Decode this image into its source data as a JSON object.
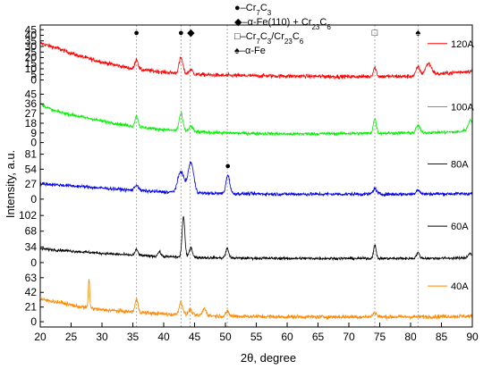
{
  "chart_data": {
    "type": "line",
    "xlabel": "2θ, degree",
    "ylabel": "Intensity, a.u.",
    "xlim": [
      20,
      90
    ],
    "x_ticks": [
      20,
      25,
      30,
      35,
      40,
      45,
      50,
      55,
      60,
      65,
      70,
      75,
      80,
      85,
      90
    ],
    "grid": false,
    "legend_position": "top-center",
    "legend": [
      {
        "marker": "●",
        "label_parts": [
          [
            "–Cr",
            "n"
          ],
          [
            "7",
            "sub"
          ],
          [
            "C",
            "n"
          ],
          [
            "3",
            "sub"
          ]
        ]
      },
      {
        "marker": "◆",
        "label_parts": [
          [
            "–α-Fe(110) + Cr",
            "n"
          ],
          [
            "23",
            "sub"
          ],
          [
            "C",
            "n"
          ],
          [
            "6",
            "sub"
          ]
        ]
      },
      {
        "marker": "□",
        "label_parts": [
          [
            "–Cr",
            "n"
          ],
          [
            "7",
            "sub"
          ],
          [
            "C",
            "n"
          ],
          [
            "3",
            "sub"
          ],
          [
            "/Cr",
            "n"
          ],
          [
            "23",
            "sub"
          ],
          [
            "C",
            "n"
          ],
          [
            "6",
            "sub"
          ]
        ]
      },
      {
        "marker": "♠",
        "label_parts": [
          [
            "–α-Fe",
            "n"
          ]
        ]
      }
    ],
    "reference_lines_x": [
      35.6,
      42.8,
      44.3,
      50.3,
      74.2,
      81.2
    ],
    "series": [
      {
        "name": "120A",
        "color": "#ff0000",
        "ticks": [
          0,
          5,
          10,
          15,
          20,
          25,
          30,
          35,
          40,
          45
        ],
        "ylim": [
          -2,
          46
        ],
        "base": [
          [
            20,
            33
          ],
          [
            23,
            28
          ],
          [
            26,
            22
          ],
          [
            30,
            16
          ],
          [
            35,
            10
          ],
          [
            40,
            7
          ],
          [
            45,
            5
          ],
          [
            50,
            4
          ],
          [
            60,
            3.5
          ],
          [
            70,
            3
          ],
          [
            80,
            3.2
          ],
          [
            90,
            8
          ]
        ],
        "noise": 2.6,
        "peaks": [
          [
            35.6,
            9,
            0.25
          ],
          [
            42.8,
            14,
            0.3
          ],
          [
            44.4,
            4,
            0.3
          ],
          [
            74.2,
            8,
            0.25
          ],
          [
            81.2,
            8,
            0.3
          ],
          [
            82.9,
            10,
            0.5
          ]
        ],
        "markers": [
          {
            "symbol": "●",
            "x": 35.6
          },
          {
            "symbol": "●",
            "x": 42.8
          },
          {
            "symbol": "◆",
            "x": 44.4
          },
          {
            "symbol": "□",
            "x": 74.2
          },
          {
            "symbol": "♠",
            "x": 81.2
          }
        ]
      },
      {
        "name": "100A",
        "color": "#00ee00",
        "ticks": [
          0,
          9,
          18,
          27,
          36,
          45
        ],
        "ylim": [
          -2,
          47
        ],
        "base": [
          [
            20,
            36
          ],
          [
            22,
            30
          ],
          [
            25,
            26
          ],
          [
            30,
            20
          ],
          [
            35,
            15
          ],
          [
            40,
            12
          ],
          [
            45,
            10
          ],
          [
            50,
            9
          ],
          [
            60,
            8
          ],
          [
            70,
            8.5
          ],
          [
            80,
            9
          ],
          [
            88,
            10
          ],
          [
            90,
            14
          ]
        ],
        "noise": 2.2,
        "peaks": [
          [
            35.6,
            10,
            0.25
          ],
          [
            42.8,
            16,
            0.3
          ],
          [
            44.4,
            5,
            0.3
          ],
          [
            74.2,
            13,
            0.25
          ],
          [
            81.2,
            7,
            0.3
          ],
          [
            89.7,
            8,
            0.3
          ]
        ],
        "markers": []
      },
      {
        "name": "80A",
        "color": "#0000ee",
        "ticks": [
          0,
          27,
          54,
          81
        ],
        "ylim": [
          -5,
          90
        ],
        "base": [
          [
            20,
            28
          ],
          [
            25,
            24
          ],
          [
            30,
            20
          ],
          [
            35,
            16
          ],
          [
            40,
            13
          ],
          [
            45,
            11
          ],
          [
            50,
            10
          ],
          [
            60,
            9
          ],
          [
            70,
            9
          ],
          [
            80,
            9
          ],
          [
            90,
            10
          ]
        ],
        "noise": 4.5,
        "peaks": [
          [
            35.6,
            10,
            0.3
          ],
          [
            42.8,
            38,
            0.5
          ],
          [
            44.4,
            55,
            0.45
          ],
          [
            50.4,
            34,
            0.3
          ],
          [
            74.2,
            10,
            0.3
          ],
          [
            81.2,
            8,
            0.3
          ]
        ],
        "markers": [
          {
            "symbol": "●",
            "x": 50.4
          }
        ]
      },
      {
        "name": "60A",
        "color": "#000000",
        "ticks": [
          0,
          34,
          68,
          102
        ],
        "ylim": [
          -6,
          112
        ],
        "base": [
          [
            20,
            30
          ],
          [
            25,
            25
          ],
          [
            30,
            20
          ],
          [
            35,
            16
          ],
          [
            40,
            13
          ],
          [
            45,
            11
          ],
          [
            50,
            10
          ],
          [
            60,
            9
          ],
          [
            70,
            9
          ],
          [
            80,
            9
          ],
          [
            90,
            10
          ]
        ],
        "noise": 4.2,
        "peaks": [
          [
            35.6,
            12,
            0.25
          ],
          [
            39.3,
            10,
            0.25
          ],
          [
            43.2,
            88,
            0.22
          ],
          [
            44.4,
            22,
            0.25
          ],
          [
            50.3,
            20,
            0.25
          ],
          [
            74.2,
            30,
            0.2
          ],
          [
            81.2,
            12,
            0.25
          ],
          [
            89.6,
            10,
            0.3
          ]
        ],
        "markers": []
      },
      {
        "name": "40A",
        "color": "#ff8800",
        "ticks": [
          0,
          21,
          42,
          63
        ],
        "ylim": [
          -5,
          73
        ],
        "base": [
          [
            20,
            32
          ],
          [
            23,
            28
          ],
          [
            26,
            22
          ],
          [
            30,
            17
          ],
          [
            35,
            14
          ],
          [
            40,
            11
          ],
          [
            45,
            9
          ],
          [
            50,
            8
          ],
          [
            60,
            7
          ],
          [
            70,
            7
          ],
          [
            80,
            7
          ],
          [
            90,
            8
          ]
        ],
        "noise": 4.2,
        "peaks": [
          [
            27.9,
            40,
            0.12
          ],
          [
            35.6,
            18,
            0.25
          ],
          [
            42.8,
            18,
            0.3
          ],
          [
            44.3,
            8,
            0.3
          ],
          [
            46.6,
            10,
            0.3
          ],
          [
            50.3,
            6,
            0.3
          ],
          [
            74.2,
            6,
            0.3
          ]
        ],
        "markers": []
      }
    ]
  }
}
